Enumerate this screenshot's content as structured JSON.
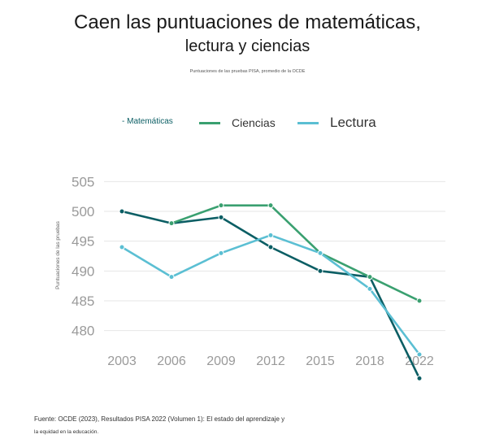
{
  "title_line1": "Caen las puntuaciones de matemáticas,",
  "title_line2": "lectura y ciencias",
  "subtitle": "Puntuaciones de las pruebas PISA, promedio de la OCDE",
  "legend": {
    "mat": "- Matemáticas",
    "cie": "Ciencias",
    "lec": "Lectura"
  },
  "footer_line1": "Fuente: OCDE (2023), Resultados PISA 2022 (Volumen 1): El estado del aprendizaje y",
  "footer_line2": "la equidad en la educación.",
  "colors": {
    "mat": "#0b5e64",
    "cie": "#3aa070",
    "lec": "#5bbfd3",
    "grid": "#e6e6e6",
    "tick": "#9a9a9a"
  },
  "chart_data": {
    "type": "line",
    "title": "Caen las puntuaciones de matemáticas, lectura y ciencias",
    "subtitle": "Puntuaciones de las pruebas PISA, promedio de la OCDE",
    "ylabel": "Puntuaciones de las pruebas",
    "xlabel": "",
    "categories": [
      "2003",
      "2006",
      "2009",
      "2012",
      "2015",
      "2018",
      "2022"
    ],
    "yticks": [
      480,
      485,
      490,
      495,
      500,
      505
    ],
    "ylim": [
      479,
      506
    ],
    "grid": true,
    "legend_position": "top",
    "series": [
      {
        "name": "Matemáticas",
        "values": [
          500,
          498,
          499,
          494,
          490,
          489,
          472
        ],
        "color": "#0b5e64"
      },
      {
        "name": "Ciencias",
        "values": [
          null,
          498,
          501,
          501,
          493,
          489,
          485
        ],
        "color": "#3aa070"
      },
      {
        "name": "Lectura",
        "values": [
          494,
          489,
          493,
          496,
          493,
          487,
          476
        ],
        "color": "#5bbfd3"
      }
    ]
  }
}
